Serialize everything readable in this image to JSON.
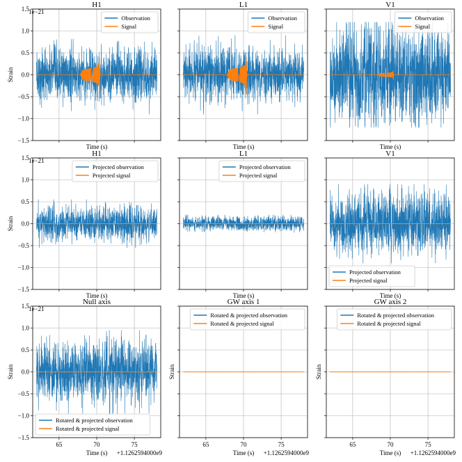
{
  "figure": {
    "sharey_exponent": "1e−21",
    "sharex_offset": "+1.1262594000e9",
    "colors": {
      "observation": "#1f77b4",
      "signal": "#ff7f0e"
    }
  },
  "chart_data": [
    {
      "type": "line",
      "title": "H1",
      "xlabel": "Time (s)",
      "ylabel": "Strain",
      "xlim": [
        61.5,
        78.5
      ],
      "ylim": [
        -1.5,
        1.5
      ],
      "yticks": [
        -1.5,
        -1.0,
        -0.5,
        0.0,
        0.5,
        1.0,
        1.5
      ],
      "ytick_labels": [
        "−1.5",
        "−1.0",
        "−0.5",
        "0.0",
        "0.5",
        "1.0",
        "1.5"
      ],
      "xticks": [
        65,
        70,
        75
      ],
      "xtick_labels": [
        "",
        "",
        ""
      ],
      "legend_position": "top-right",
      "series": [
        {
          "name": "Observation",
          "kind": "noise",
          "x_range": [
            62,
            78
          ],
          "amplitude": 0.3,
          "peak": 0.9
        },
        {
          "name": "Signal",
          "kind": "chirp",
          "x_range": [
            62,
            78
          ],
          "merger_time": 70.4,
          "start_time": 67.8,
          "peak": 0.63
        }
      ]
    },
    {
      "type": "line",
      "title": "L1",
      "xlabel": "Time (s)",
      "ylabel": "",
      "xlim": [
        61.5,
        78.5
      ],
      "ylim": [
        -1.5,
        1.5
      ],
      "yticks": [
        -1.5,
        -1.0,
        -0.5,
        0.0,
        0.5,
        1.0,
        1.5
      ],
      "ytick_labels": [],
      "xticks": [
        65,
        70,
        75
      ],
      "xtick_labels": [
        "",
        "",
        ""
      ],
      "legend_position": "top-right",
      "series": [
        {
          "name": "Observation",
          "kind": "noise",
          "x_range": [
            62,
            78
          ],
          "amplitude": 0.3,
          "peak": 0.9
        },
        {
          "name": "Signal",
          "kind": "chirp",
          "x_range": [
            62,
            78
          ],
          "merger_time": 70.4,
          "start_time": 67.8,
          "peak": 0.66
        }
      ]
    },
    {
      "type": "line",
      "title": "V1",
      "xlabel": "Time (s)",
      "ylabel": "",
      "xlim": [
        61.5,
        78.5
      ],
      "ylim": [
        -1.5,
        1.5
      ],
      "yticks": [
        -1.5,
        -1.0,
        -0.5,
        0.0,
        0.5,
        1.0,
        1.5
      ],
      "ytick_labels": [],
      "xticks": [
        65,
        70,
        75
      ],
      "xtick_labels": [
        "",
        "",
        ""
      ],
      "legend_position": "top-right",
      "series": [
        {
          "name": "Observation",
          "kind": "noise",
          "x_range": [
            62,
            78
          ],
          "amplitude": 0.55,
          "peak": 1.2
        },
        {
          "name": "Signal",
          "kind": "chirp",
          "x_range": [
            62,
            78
          ],
          "merger_time": 70.4,
          "start_time": 68.3,
          "peak": 0.17
        }
      ]
    },
    {
      "type": "line",
      "title": "H1",
      "xlabel": "Time (s)",
      "ylabel": "Strain",
      "xlim": [
        61.5,
        78.5
      ],
      "ylim": [
        -1.5,
        1.5
      ],
      "yticks": [
        -1.5,
        -1.0,
        -0.5,
        0.0,
        0.5,
        1.0,
        1.5
      ],
      "ytick_labels": [
        "−1.5",
        "−1.0",
        "−0.5",
        "0.0",
        "0.5",
        "1.0",
        "1.5"
      ],
      "xticks": [
        65,
        70,
        75
      ],
      "xtick_labels": [
        "",
        "",
        ""
      ],
      "legend_position": "top-right",
      "series": [
        {
          "name": "Projected observation",
          "kind": "noise",
          "x_range": [
            62,
            78
          ],
          "amplitude": 0.2,
          "peak": 0.55
        },
        {
          "name": "Projected signal",
          "kind": "flat",
          "x_range": [
            62,
            78
          ],
          "value": 0.0
        }
      ]
    },
    {
      "type": "line",
      "title": "L1",
      "xlabel": "Time (s)",
      "ylabel": "",
      "xlim": [
        61.5,
        78.5
      ],
      "ylim": [
        -1.5,
        1.5
      ],
      "yticks": [
        -1.5,
        -1.0,
        -0.5,
        0.0,
        0.5,
        1.0,
        1.5
      ],
      "ytick_labels": [],
      "xticks": [
        65,
        70,
        75
      ],
      "xtick_labels": [
        "",
        "",
        ""
      ],
      "legend_position": "top-right",
      "series": [
        {
          "name": "Projected observation",
          "kind": "noise",
          "x_range": [
            62,
            78
          ],
          "amplitude": 0.08,
          "peak": 0.2
        },
        {
          "name": "Projected signal",
          "kind": "flat",
          "x_range": [
            62,
            78
          ],
          "value": 0.0
        }
      ]
    },
    {
      "type": "line",
      "title": "V1",
      "xlabel": "Time (s)",
      "ylabel": "",
      "xlim": [
        61.5,
        78.5
      ],
      "ylim": [
        -1.5,
        1.5
      ],
      "yticks": [
        -1.5,
        -1.0,
        -0.5,
        0.0,
        0.5,
        1.0,
        1.5
      ],
      "ytick_labels": [],
      "xticks": [
        65,
        70,
        75
      ],
      "xtick_labels": [
        "",
        "",
        ""
      ],
      "legend_position": "bottom-left",
      "series": [
        {
          "name": "Projected observation",
          "kind": "noise",
          "x_range": [
            62,
            78
          ],
          "amplitude": 0.35,
          "peak": 0.9
        },
        {
          "name": "Projected signal",
          "kind": "flat",
          "x_range": [
            62,
            78
          ],
          "value": 0.0
        }
      ]
    },
    {
      "type": "line",
      "title": "Null axis",
      "xlabel": "Time (s)",
      "ylabel": "Strain",
      "xlim": [
        61.5,
        78.5
      ],
      "ylim": [
        -1.5,
        1.5
      ],
      "yticks": [
        -1.5,
        -1.0,
        -0.5,
        0.0,
        0.5,
        1.0,
        1.5
      ],
      "ytick_labels": [
        "−1.5",
        "−1.0",
        "−0.5",
        "0.0",
        "0.5",
        "1.0",
        "1.5"
      ],
      "xticks": [
        65,
        70,
        75
      ],
      "xtick_labels": [
        "65",
        "70",
        "75"
      ],
      "legend_position": "bottom-left",
      "series": [
        {
          "name": "Rotated & projected observation",
          "kind": "noise",
          "x_range": [
            62,
            78
          ],
          "amplitude": 0.35,
          "peak": 0.95
        },
        {
          "name": "Rotated & projected signal",
          "kind": "flat",
          "x_range": [
            62,
            78
          ],
          "value": 0.0
        }
      ]
    },
    {
      "type": "line",
      "title": "GW axis 1",
      "xlabel": "Time (s)",
      "ylabel": "Strain",
      "xlim": [
        61.5,
        78.5
      ],
      "ylim": [
        -1.5,
        1.5
      ],
      "yticks": [
        -1.5,
        -1.0,
        -0.5,
        0.0,
        0.5,
        1.0,
        1.5
      ],
      "ytick_labels": [],
      "xticks": [
        65,
        70,
        75
      ],
      "xtick_labels": [
        "65",
        "70",
        "75"
      ],
      "legend_position": "top-right",
      "series": [
        {
          "name": "Rotated & projected observation",
          "kind": "noise",
          "x_range": [
            62,
            78
          ],
          "amplitude": 0.002,
          "peak": 0.005
        },
        {
          "name": "Rotated & projected signal",
          "kind": "flat",
          "x_range": [
            62,
            78
          ],
          "value": 0.0
        }
      ]
    },
    {
      "type": "line",
      "title": "GW axis 2",
      "xlabel": "Time (s)",
      "ylabel": "Strain",
      "xlim": [
        61.5,
        78.5
      ],
      "ylim": [
        -1.5,
        1.5
      ],
      "yticks": [
        -1.5,
        -1.0,
        -0.5,
        0.0,
        0.5,
        1.0,
        1.5
      ],
      "ytick_labels": [],
      "xticks": [
        65,
        70,
        75
      ],
      "xtick_labels": [
        "65",
        "70",
        "75"
      ],
      "legend_position": "top-right",
      "series": [
        {
          "name": "Rotated & projected observation",
          "kind": "noise",
          "x_range": [
            62,
            78
          ],
          "amplitude": 0.002,
          "peak": 0.005
        },
        {
          "name": "Rotated & projected signal",
          "kind": "flat",
          "x_range": [
            62,
            78
          ],
          "value": 0.0
        }
      ]
    }
  ]
}
